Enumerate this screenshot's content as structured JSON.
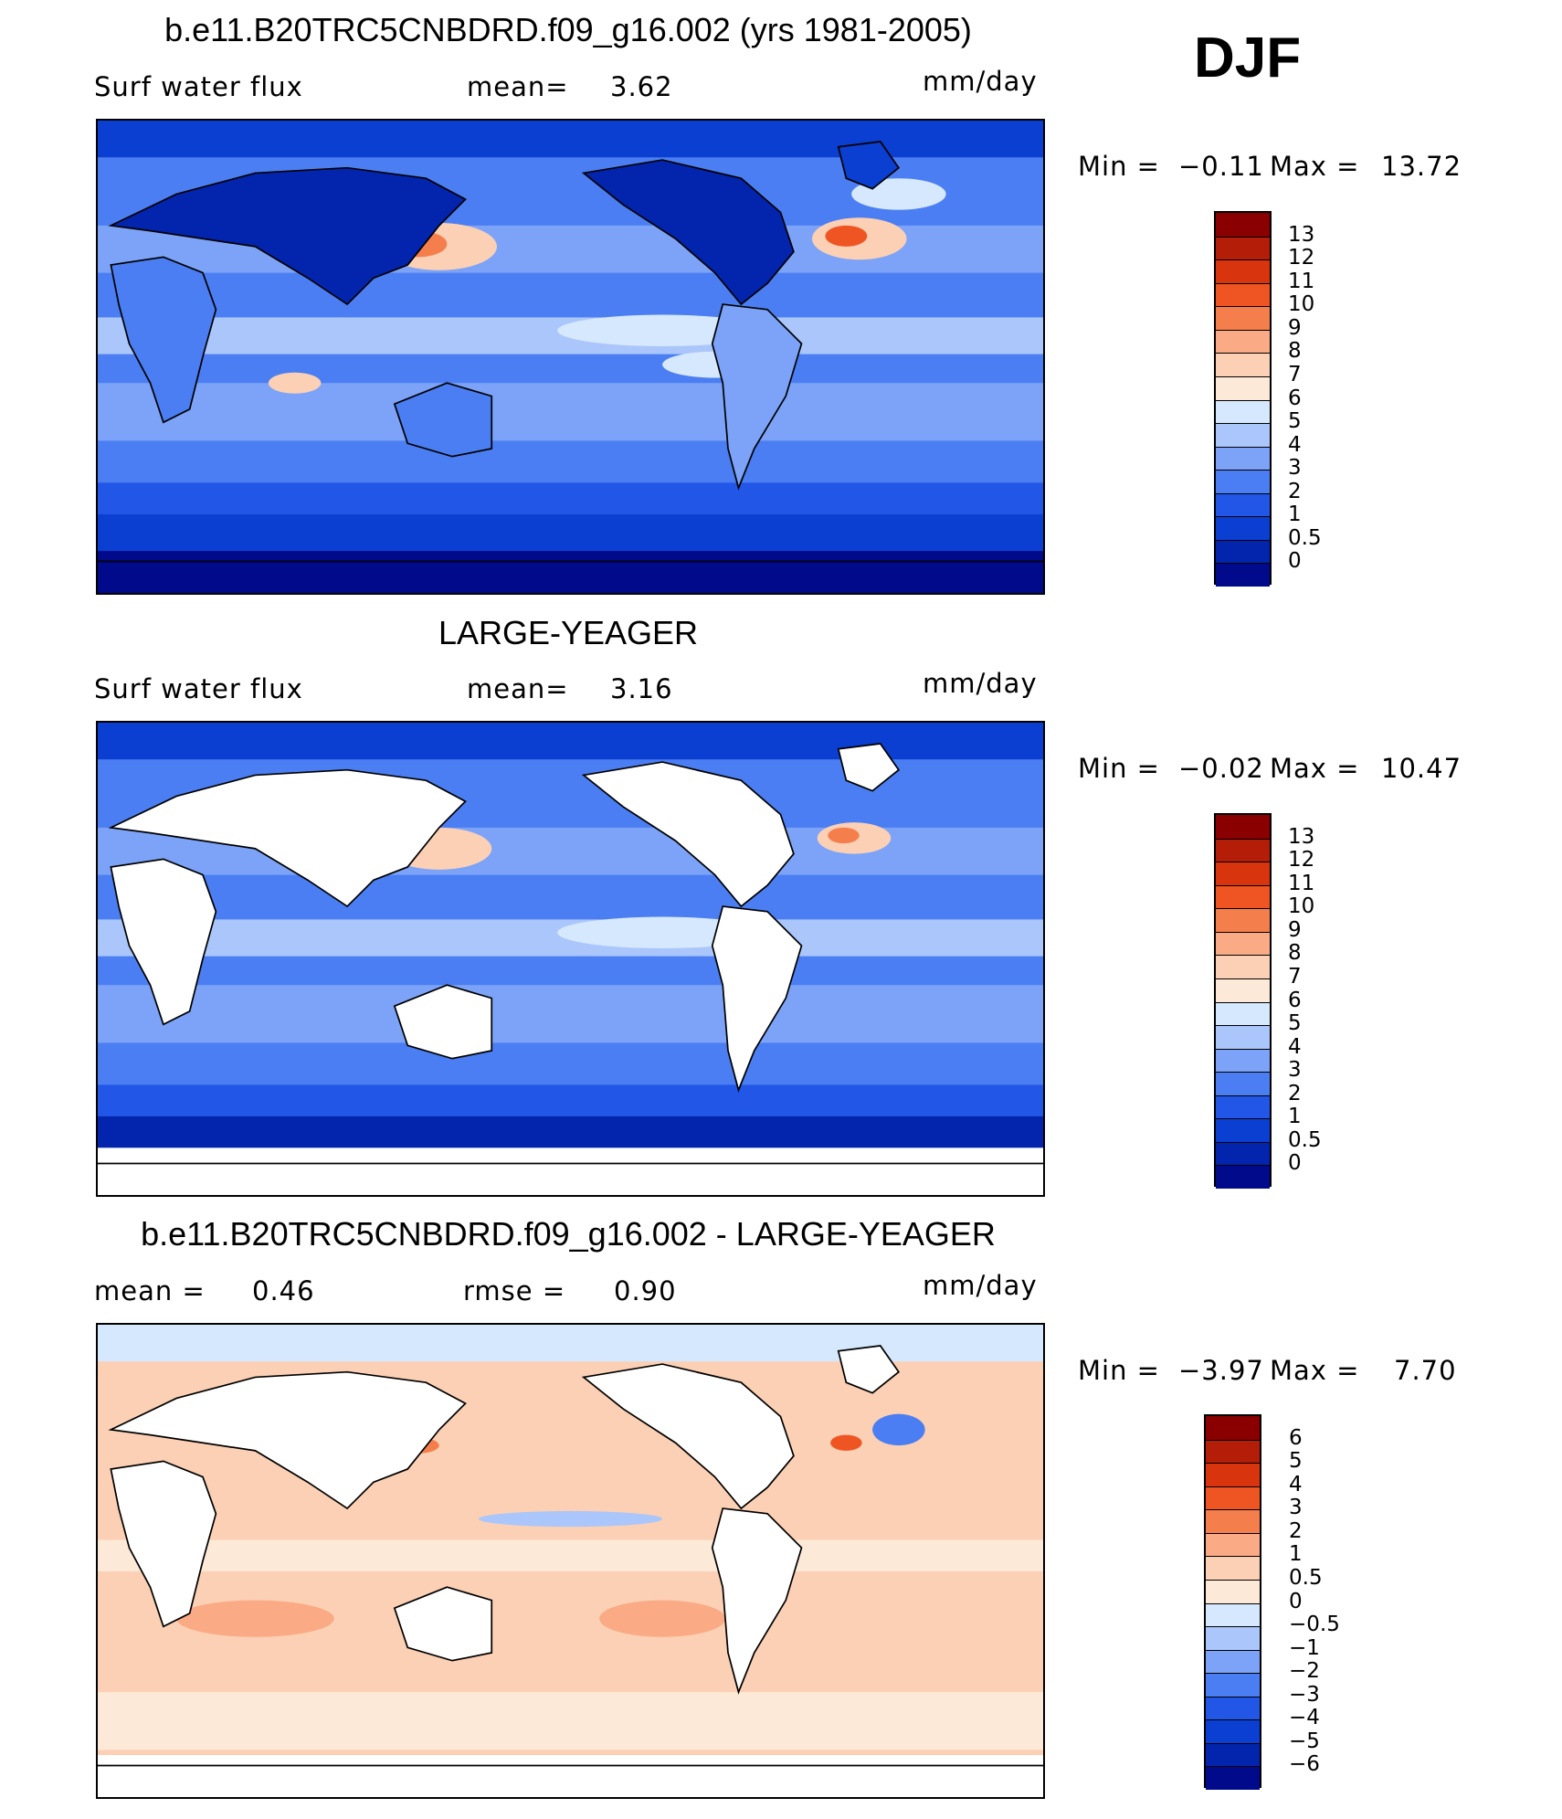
{
  "season": "DJF",
  "map_domain": {
    "lon_range": [
      0,
      360
    ],
    "lat_range": [
      -90,
      90
    ]
  },
  "panels": [
    {
      "id": "model",
      "title": "b.e11.B20TRC5CNBDRD.f09_g16.002 (yrs 1981-2005)",
      "left_label": "Surf water flux",
      "center_label": "mean=",
      "center_value": "3.62",
      "units": "mm/day",
      "min_label": "Min =",
      "min_value": "−0.11",
      "max_label": "Max =",
      "max_value": "13.72",
      "land_fill": true,
      "colors": [
        "#000a8a",
        "#0325ad",
        "#0a3fd1",
        "#2156e6",
        "#4b7ef2",
        "#7ca3f7",
        "#aac6fb",
        "#d6e8fd",
        "#fde9d8",
        "#fcd0b4",
        "#faaa84",
        "#f57e4d",
        "#ef5522",
        "#d8350e",
        "#b41e08",
        "#8a0000"
      ],
      "ticks": [
        "0",
        "0.5",
        "1",
        "2",
        "3",
        "4",
        "5",
        "6",
        "7",
        "8",
        "9",
        "10",
        "11",
        "12",
        "13"
      ]
    },
    {
      "id": "obs",
      "title": "LARGE-YEAGER",
      "left_label": "Surf water flux",
      "center_label": "mean=",
      "center_value": "3.16",
      "units": "mm/day",
      "min_label": "Min =",
      "min_value": "−0.02",
      "max_label": "Max =",
      "max_value": "10.47",
      "land_fill": false,
      "colors": [
        "#000a8a",
        "#0325ad",
        "#0a3fd1",
        "#2156e6",
        "#4b7ef2",
        "#7ca3f7",
        "#aac6fb",
        "#d6e8fd",
        "#fde9d8",
        "#fcd0b4",
        "#faaa84",
        "#f57e4d",
        "#ef5522",
        "#d8350e",
        "#b41e08",
        "#8a0000"
      ],
      "ticks": [
        "0",
        "0.5",
        "1",
        "2",
        "3",
        "4",
        "5",
        "6",
        "7",
        "8",
        "9",
        "10",
        "11",
        "12",
        "13"
      ]
    },
    {
      "id": "diff",
      "title": "b.e11.B20TRC5CNBDRD.f09_g16.002 - LARGE-YEAGER",
      "left_label": "mean =",
      "left_value": "0.46",
      "center_label": "rmse =",
      "center_value": "0.90",
      "units": "mm/day",
      "min_label": "Min =",
      "min_value": "−3.97",
      "max_label": "Max =",
      "max_value": "7.70",
      "land_fill": false,
      "colors": [
        "#000a8a",
        "#0325ad",
        "#0a3fd1",
        "#2156e6",
        "#4b7ef2",
        "#7ca3f7",
        "#aac6fb",
        "#d6e8fd",
        "#fde9d8",
        "#fcd0b4",
        "#faaa84",
        "#f57e4d",
        "#ef5522",
        "#d8350e",
        "#b41e08",
        "#8a0000"
      ],
      "ticks": [
        "−6",
        "−5",
        "−4",
        "−3",
        "−2",
        "−1",
        "−0.5",
        "0",
        "0.5",
        "1",
        "2",
        "3",
        "4",
        "5",
        "6"
      ]
    }
  ]
}
